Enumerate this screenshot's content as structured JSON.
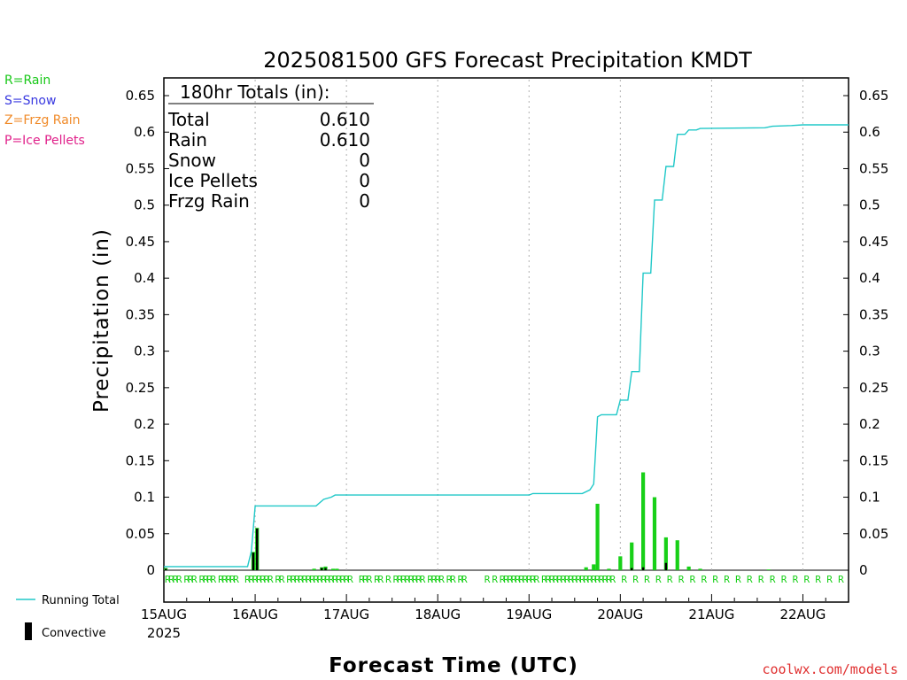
{
  "title": "2025081500 GFS Forecast Precipitation KMDT",
  "legend_types": [
    {
      "label": "R=Rain",
      "color": "#18c818"
    },
    {
      "label": "S=Snow",
      "color": "#3838e0"
    },
    {
      "label": "Z=Frzg Rain",
      "color": "#f08a28"
    },
    {
      "label": "P=Ice Pellets",
      "color": "#e0208a"
    }
  ],
  "totals_box": {
    "heading": "180hr Totals (in):",
    "rows": [
      {
        "label": "Total",
        "value": "0.610"
      },
      {
        "label": "Rain",
        "value": "0.610"
      },
      {
        "label": "Snow",
        "value": "0"
      },
      {
        "label": "Ice Pellets",
        "value": "0"
      },
      {
        "label": "Frzg Rain",
        "value": "0"
      }
    ]
  },
  "bottom_legend": {
    "running_total": "Running Total",
    "convective": "Convective"
  },
  "credit": "coolwx.com/models",
  "colors": {
    "running_total": "#20c8c8",
    "rain_bar": "#18d018",
    "convective_bar": "#000000",
    "grid": "#b0b0b0"
  },
  "chart_data": {
    "type": "bar",
    "title": "2025081500 GFS Forecast Precipitation KMDT",
    "xlabel": "Forecast Time (UTC)",
    "ylabel": "Precipitation (in)",
    "x_unit": "forecast hour",
    "xlim": [
      0,
      180
    ],
    "ylim": [
      0,
      0.65
    ],
    "y_ticks": [
      "0",
      "0.05",
      "0.1",
      "0.15",
      "0.2",
      "0.25",
      "0.3",
      "0.35",
      "0.4",
      "0.45",
      "0.5",
      "0.55",
      "0.6",
      "0.65"
    ],
    "x_ticks": [
      {
        "hour": 0,
        "label": "15AUG",
        "sublabel": "2025"
      },
      {
        "hour": 24,
        "label": "16AUG"
      },
      {
        "hour": 48,
        "label": "17AUG"
      },
      {
        "hour": 72,
        "label": "18AUG"
      },
      {
        "hour": 96,
        "label": "19AUG"
      },
      {
        "hour": 120,
        "label": "20AUG"
      },
      {
        "hour": 144,
        "label": "21AUG"
      },
      {
        "hour": 168,
        "label": "22AUG"
      }
    ],
    "grid": "vertical dotted at day boundaries",
    "series": [
      {
        "name": "Running Total",
        "kind": "line",
        "points": [
          [
            0,
            0.005
          ],
          [
            22,
            0.005
          ],
          [
            23,
            0.026
          ],
          [
            24,
            0.088
          ],
          [
            34,
            0.088
          ],
          [
            40,
            0.088
          ],
          [
            42,
            0.097
          ],
          [
            44,
            0.1
          ],
          [
            45,
            0.103
          ],
          [
            60,
            0.103
          ],
          [
            72,
            0.103
          ],
          [
            96,
            0.103
          ],
          [
            97,
            0.105
          ],
          [
            110,
            0.105
          ],
          [
            112,
            0.11
          ],
          [
            113,
            0.118
          ],
          [
            114,
            0.21
          ],
          [
            115,
            0.213
          ],
          [
            119,
            0.213
          ],
          [
            120,
            0.233
          ],
          [
            122,
            0.233
          ],
          [
            123,
            0.272
          ],
          [
            125,
            0.272
          ],
          [
            126,
            0.407
          ],
          [
            128,
            0.407
          ],
          [
            129,
            0.507
          ],
          [
            131,
            0.507
          ],
          [
            132,
            0.553
          ],
          [
            134,
            0.553
          ],
          [
            135,
            0.597
          ],
          [
            137,
            0.597
          ],
          [
            138,
            0.603
          ],
          [
            140,
            0.603
          ],
          [
            141,
            0.605
          ],
          [
            158,
            0.606
          ],
          [
            160,
            0.608
          ],
          [
            165,
            0.609
          ],
          [
            168,
            0.61
          ],
          [
            180,
            0.61
          ]
        ]
      },
      {
        "name": "Rain",
        "kind": "bar",
        "points": [
          [
            0.5,
            0.003
          ],
          [
            23.5,
            0.025
          ],
          [
            24.5,
            0.058
          ],
          [
            39.5,
            0.002
          ],
          [
            41.5,
            0.004
          ],
          [
            42.5,
            0.005
          ],
          [
            44.5,
            0.002
          ],
          [
            45.5,
            0.002
          ],
          [
            111,
            0.004
          ],
          [
            113,
            0.008
          ],
          [
            114,
            0.091
          ],
          [
            117,
            0.002
          ],
          [
            120,
            0.019
          ],
          [
            123,
            0.038
          ],
          [
            126,
            0.134
          ],
          [
            129,
            0.1
          ],
          [
            132,
            0.045
          ],
          [
            135,
            0.041
          ],
          [
            138,
            0.005
          ],
          [
            141,
            0.002
          ],
          [
            159,
            0.001
          ]
        ]
      },
      {
        "name": "Convective",
        "kind": "bar",
        "points": [
          [
            0.5,
            0.002
          ],
          [
            23.5,
            0.024
          ],
          [
            24.5,
            0.057
          ],
          [
            41.5,
            0.003
          ],
          [
            42.5,
            0.003
          ],
          [
            123,
            0.003
          ],
          [
            126,
            0.004
          ],
          [
            132,
            0.01
          ]
        ]
      }
    ],
    "ptype_markers": {
      "letter": "R",
      "hours": [
        0,
        1,
        2,
        3,
        5,
        6,
        7,
        9,
        10,
        11,
        12,
        14,
        15,
        16,
        17,
        18,
        21,
        22,
        23,
        24,
        25,
        26,
        27,
        29,
        30,
        32,
        33,
        34,
        35,
        36,
        37,
        38,
        39,
        40,
        41,
        42,
        43,
        44,
        45,
        46,
        47,
        48,
        51,
        52,
        53,
        55,
        56,
        58,
        60,
        61,
        62,
        63,
        64,
        65,
        66,
        67,
        69,
        70,
        71,
        72,
        74,
        75,
        77,
        78,
        84,
        86,
        88,
        89,
        90,
        91,
        92,
        93,
        94,
        95,
        96,
        97,
        99,
        100,
        101,
        102,
        103,
        104,
        105,
        106,
        107,
        108,
        109,
        110,
        111,
        112,
        113,
        114,
        115,
        116,
        117,
        120,
        123,
        126,
        129,
        132,
        135,
        138,
        141,
        144,
        147,
        150,
        153,
        156,
        159,
        162,
        165,
        168,
        171,
        174,
        177
      ]
    }
  }
}
